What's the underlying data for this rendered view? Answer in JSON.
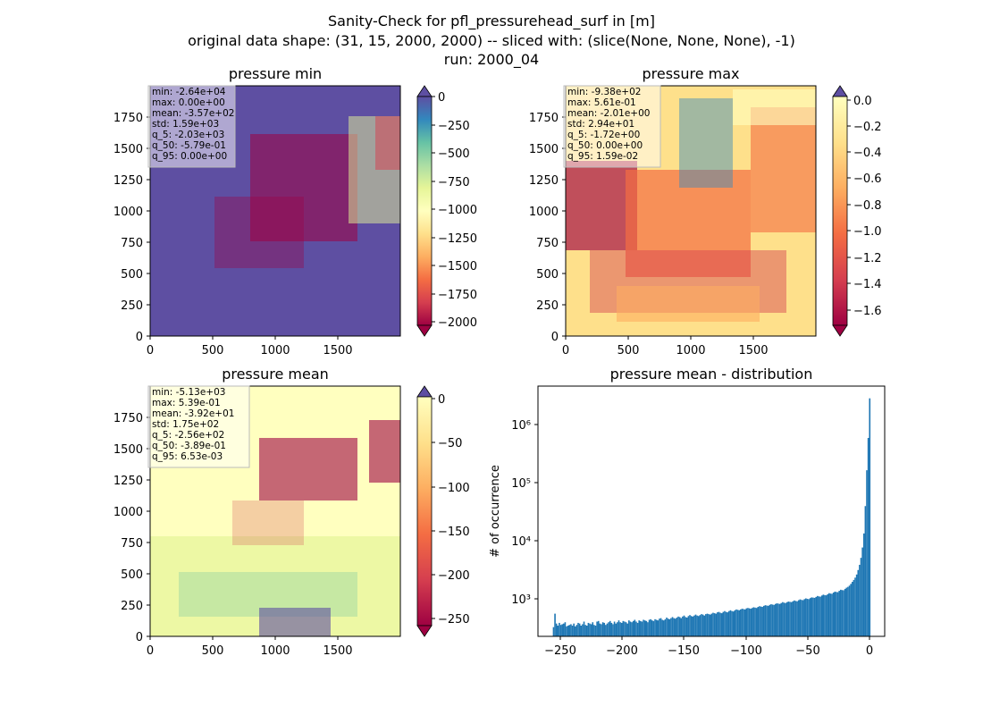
{
  "figure": {
    "title_lines": [
      "Sanity-Check for pfl_pressurehead_surf in [m]",
      "original data shape: (31, 15, 2000, 2000) -- sliced with: (slice(None, None, None), -1)",
      "run: 2000_04"
    ]
  },
  "chart_data": [
    {
      "type": "heatmap",
      "title": "pressure min",
      "colormap": "Spectral",
      "x_ticks": [
        "0",
        "500",
        "1000",
        "1500"
      ],
      "y_ticks": [
        "0",
        "250",
        "500",
        "750",
        "1000",
        "1250",
        "1500",
        "1750"
      ],
      "xlim": [
        0,
        2000
      ],
      "ylim": [
        0,
        2000
      ],
      "colorbar": {
        "range": [
          -2100,
          0
        ],
        "ticks": [
          "0",
          "−250",
          "−500",
          "−750",
          "−1000",
          "−1250",
          "−1500",
          "−1750",
          "−2000"
        ],
        "extend": "both"
      },
      "stats": [
        "min: -2.64e+04",
        "max: 0.00e+00",
        "mean: -3.57e+02",
        "std: 1.59e+03",
        "q_5: -2.03e+03",
        "q_50: -5.79e-01",
        "q_95: 0.00e+00"
      ]
    },
    {
      "type": "heatmap",
      "title": "pressure max",
      "colormap": "Spectral",
      "x_ticks": [
        "0",
        "500",
        "1000",
        "1500"
      ],
      "y_ticks": [
        "0",
        "250",
        "500",
        "750",
        "1000",
        "1250",
        "1500",
        "1750"
      ],
      "xlim": [
        0,
        2000
      ],
      "ylim": [
        0,
        2000
      ],
      "colorbar": {
        "range": [
          -1.72,
          0.016
        ],
        "ticks": [
          "0.0",
          "−0.2",
          "−0.4",
          "−0.6",
          "−0.8",
          "−1.0",
          "−1.2",
          "−1.4",
          "−1.6"
        ],
        "extend": "both"
      },
      "stats": [
        "min: -9.38e+02",
        "max: 5.61e-01",
        "mean: -2.01e+00",
        "std: 2.94e+01",
        "q_5: -1.72e+00",
        "q_50: 0.00e+00",
        "q_95: 1.59e-02"
      ]
    },
    {
      "type": "heatmap",
      "title": "pressure mean",
      "colormap": "Spectral",
      "x_ticks": [
        "0",
        "500",
        "1000",
        "1500"
      ],
      "y_ticks": [
        "0",
        "250",
        "500",
        "750",
        "1000",
        "1250",
        "1500",
        "1750"
      ],
      "xlim": [
        0,
        2000
      ],
      "ylim": [
        0,
        2000
      ],
      "colorbar": {
        "range": [
          -265,
          0
        ],
        "ticks": [
          "0",
          "−50",
          "−100",
          "−150",
          "−200",
          "−250"
        ],
        "extend": "both"
      },
      "stats": [
        "min: -5.13e+03",
        "max: 5.39e-01",
        "mean: -3.92e+01",
        "std: 1.75e+02",
        "q_5: -2.56e+02",
        "q_50: -3.89e-01",
        "q_95: 6.53e-03"
      ]
    },
    {
      "type": "bar",
      "title": "pressure mean - distribution",
      "ylabel": "# of occurrence",
      "yscale": "log",
      "xlim": [
        -268,
        12
      ],
      "ylim": [
        230,
        4200000
      ],
      "x_ticks": [
        "−250",
        "−200",
        "−150",
        "−100",
        "−50",
        "0"
      ],
      "y_ticks": [
        "10³",
        "10⁴",
        "10⁵",
        "10⁶"
      ],
      "bin_range": [
        -256,
        0.5
      ],
      "values": [
        330,
        560,
        380,
        350,
        390,
        360,
        370,
        380,
        400,
        340,
        350,
        360,
        370,
        350,
        380,
        340,
        360,
        390,
        380,
        350,
        370,
        410,
        360,
        350,
        390,
        380,
        370,
        400,
        360,
        350,
        410,
        420,
        380,
        370,
        400,
        390,
        360,
        380,
        400,
        420,
        390,
        370,
        410,
        380,
        400,
        430,
        400,
        390,
        420,
        410,
        400,
        380,
        430,
        410,
        400,
        420,
        440,
        410,
        390,
        430,
        420,
        410,
        440,
        430,
        420,
        400,
        440,
        450,
        430,
        420,
        450,
        440,
        430,
        460,
        470,
        440,
        430,
        450,
        480,
        460,
        450,
        470,
        490,
        470,
        460,
        480,
        500,
        490,
        470,
        500,
        520,
        490,
        480,
        510,
        530,
        510,
        500,
        520,
        540,
        520,
        510,
        530,
        550,
        540,
        520,
        550,
        560,
        550,
        540,
        560,
        580,
        570,
        560,
        590,
        600,
        580,
        570,
        600,
        620,
        600,
        590,
        620,
        640,
        620,
        610,
        640,
        660,
        650,
        640,
        660,
        680,
        670,
        660,
        690,
        700,
        690,
        680,
        700,
        720,
        710,
        700,
        730,
        750,
        740,
        730,
        760,
        780,
        770,
        760,
        790,
        810,
        800,
        790,
        820,
        840,
        830,
        820,
        850,
        880,
        860,
        850,
        880,
        900,
        890,
        880,
        910,
        940,
        920,
        910,
        950,
        980,
        960,
        950,
        990,
        1020,
        1000,
        990,
        1030,
        1060,
        1050,
        1040,
        1080,
        1120,
        1100,
        1090,
        1140,
        1180,
        1160,
        1150,
        1200,
        1250,
        1230,
        1220,
        1280,
        1330,
        1310,
        1300,
        1370,
        1430,
        1410,
        1400,
        1480,
        1550,
        1600,
        1680,
        1800,
        1950,
        2100,
        2300,
        2600,
        3100,
        3800,
        5000,
        7500,
        13000,
        38000,
        155000,
        550000,
        2600000
      ]
    }
  ]
}
